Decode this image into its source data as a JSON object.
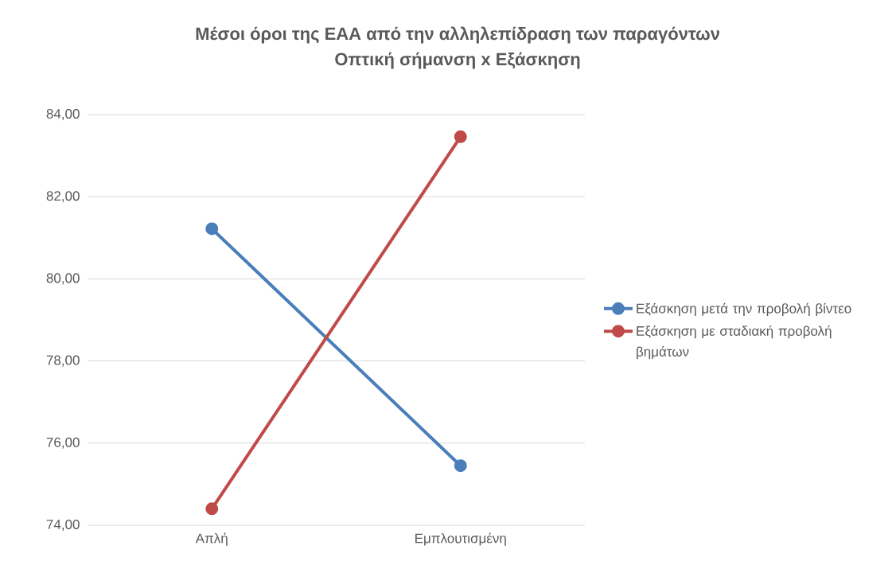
{
  "chart_data": {
    "type": "line",
    "title": "Μέσοι όροι της ΕΑΑ από την αλληλεπίδραση των παραγόντων\nΟπτική σήμανση x Εξάσκηση",
    "categories": [
      "Απλή",
      "Εμπλουτισμένη"
    ],
    "series": [
      {
        "name": "Εξάσκηση μετά την προβολή βίντεο",
        "color": "#4a7ebb",
        "values": [
          81.22,
          75.45
        ]
      },
      {
        "name": "Εξάσκηση με σταδιακή προβολή βημάτων",
        "color": "#be4b48",
        "values": [
          74.4,
          83.46
        ]
      }
    ],
    "ylim": [
      74,
      84
    ],
    "yticks": [
      {
        "value": 74,
        "label": "74,00"
      },
      {
        "value": 76,
        "label": "76,00"
      },
      {
        "value": 78,
        "label": "78,00"
      },
      {
        "value": 80,
        "label": "80,00"
      },
      {
        "value": 82,
        "label": "82,00"
      },
      {
        "value": 84,
        "label": "84,00"
      }
    ],
    "grid": "y",
    "legend": "right",
    "marker": "circle",
    "line_style": "solid"
  }
}
